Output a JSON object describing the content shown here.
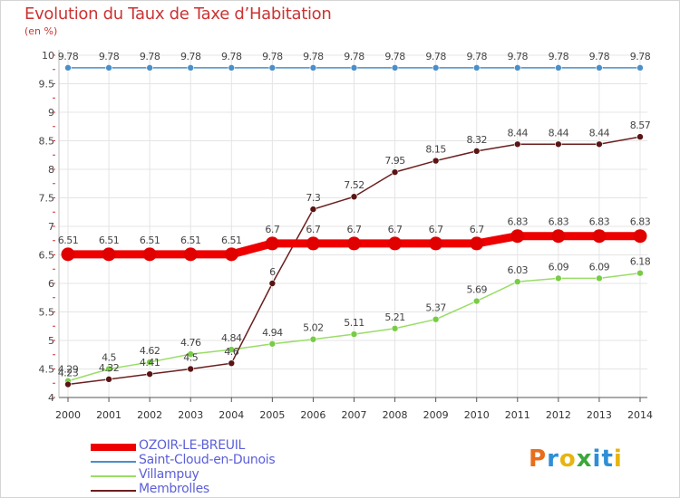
{
  "header": {
    "title": "Evolution du Taux de Taxe d’Habitation",
    "unit": "(en %)"
  },
  "chart_data": {
    "type": "line",
    "title": "Evolution du Taux de Taxe d’Habitation",
    "ylabel": "(en %)",
    "x": [
      "2000",
      "2001",
      "2002",
      "2003",
      "2004",
      "2005",
      "2006",
      "2007",
      "2008",
      "2009",
      "2010",
      "2011",
      "2012",
      "2013",
      "2014"
    ],
    "ylim": [
      4,
      10
    ],
    "yticks": [
      "4",
      "4.5",
      "5",
      "5.5",
      "6",
      "6.5",
      "7",
      "7.5",
      "8",
      "8.5",
      "9",
      "9.5",
      "10"
    ],
    "grid": true,
    "legend": "bottom-left",
    "series": [
      {
        "name": "OZOIR-LE-BREUIL",
        "color": "#ee0000",
        "values": [
          6.51,
          6.51,
          6.51,
          6.51,
          6.51,
          6.7,
          6.7,
          6.7,
          6.7,
          6.7,
          6.7,
          6.83,
          6.83,
          6.83,
          6.83
        ]
      },
      {
        "name": "Saint-Cloud-en-Dunois",
        "color": "#4a8fc9",
        "values": [
          9.78,
          9.78,
          9.78,
          9.78,
          9.78,
          9.78,
          9.78,
          9.78,
          9.78,
          9.78,
          9.78,
          9.78,
          9.78,
          9.78,
          9.78
        ]
      },
      {
        "name": "Villampuy",
        "color": "#99dd66",
        "values": [
          4.29,
          4.5,
          4.62,
          4.76,
          4.84,
          4.94,
          5.02,
          5.11,
          5.21,
          5.37,
          5.69,
          6.03,
          6.09,
          6.09,
          6.18
        ]
      },
      {
        "name": "Membrolles",
        "color": "#6b1f1f",
        "values": [
          4.23,
          4.32,
          4.41,
          4.5,
          4.6,
          6,
          7.3,
          7.52,
          7.95,
          8.15,
          8.32,
          8.44,
          8.44,
          8.44,
          8.57
        ]
      }
    ]
  },
  "legend": {
    "items": [
      {
        "label": "OZOIR-LE-BREUIL",
        "color": "#ee0000"
      },
      {
        "label": "Saint-Cloud-en-Dunois",
        "color": "#4a8fc9"
      },
      {
        "label": "Villampuy",
        "color": "#99dd66"
      },
      {
        "label": "Membrolles",
        "color": "#6b1f1f"
      }
    ]
  },
  "logo": {
    "text": [
      "P",
      "r",
      "o",
      "x",
      "i",
      "t",
      "i"
    ],
    "colors": [
      "#e86e1c",
      "#2e8fd6",
      "#e8b40e",
      "#3aa83a",
      "#2e8fd6",
      "#2e8fd6",
      "#e8b40e"
    ]
  }
}
